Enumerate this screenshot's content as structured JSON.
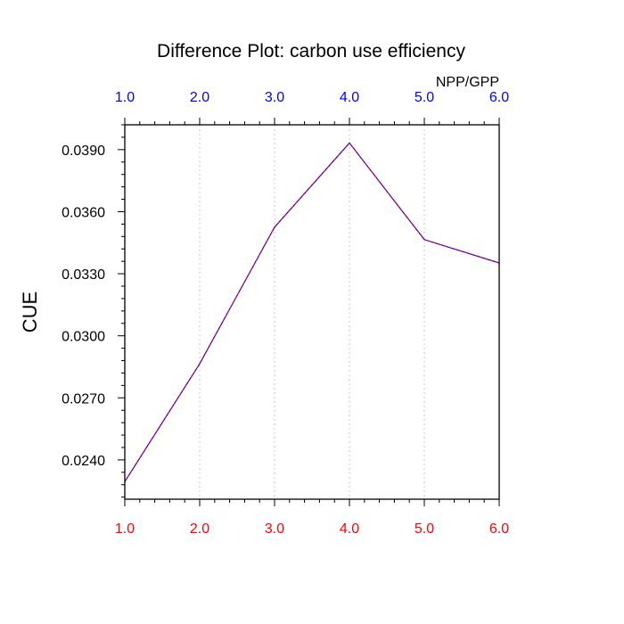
{
  "chart_data": {
    "type": "line",
    "title": "Difference Plot: carbon use efficiency",
    "ylabel": "CUE",
    "top_axis_label": "NPP/GPP",
    "xlim": [
      1.0,
      6.0
    ],
    "ylim": [
      0.0221,
      0.0402
    ],
    "x_ticks": [
      1.0,
      2.0,
      3.0,
      4.0,
      5.0,
      6.0
    ],
    "x_tick_labels_bottom": [
      "1.0",
      "2.0",
      "3.0",
      "4.0",
      "5.0",
      "6.0"
    ],
    "x_tick_labels_top": [
      "1.0",
      "2.0",
      "3.0",
      "4.0",
      "5.0",
      "6.0"
    ],
    "y_ticks": [
      0.024,
      0.027,
      0.03,
      0.033,
      0.036,
      0.039
    ],
    "y_tick_labels": [
      "0.0240",
      "0.0270",
      "0.0300",
      "0.0330",
      "0.0360",
      "0.0390"
    ],
    "grid": "vertical dotted",
    "series": [
      {
        "x": [
          1.0,
          2.0,
          3.0,
          4.0,
          5.0,
          6.0
        ],
        "values": [
          0.02295,
          0.02865,
          0.03525,
          0.03932,
          0.03465,
          0.03352
        ],
        "color_dash_a": "#ff0000",
        "color_dash_b": "#0000ff"
      }
    ],
    "colors": {
      "bottom_tick_labels": "#ff0000",
      "top_tick_labels": "#0000ff",
      "grid": "#c8c8c8",
      "frame": "#000000"
    }
  }
}
